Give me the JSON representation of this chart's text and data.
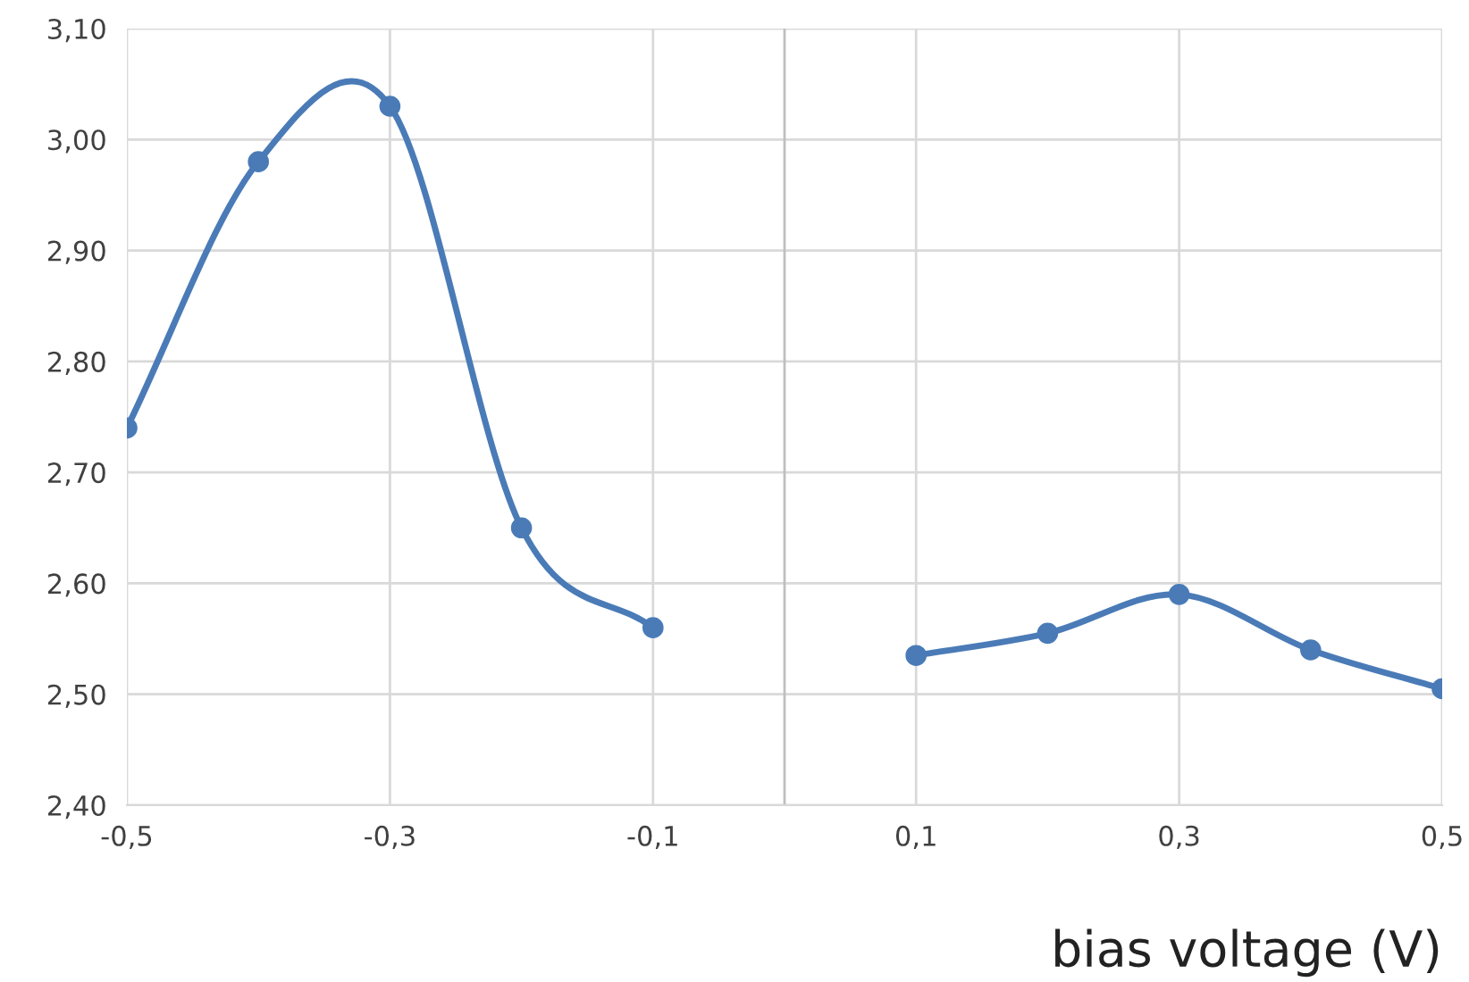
{
  "chart_data": {
    "type": "line",
    "xlabel": "bias voltage (V)",
    "series": [
      {
        "color": "#4a7bb7",
        "x": [
          -0.5,
          -0.4,
          -0.3,
          -0.2,
          -0.1
        ],
        "values": [
          2.74,
          2.98,
          3.03,
          2.65,
          2.56
        ]
      },
      {
        "color": "#4a7bb7",
        "x": [
          0.1,
          0.2,
          0.3,
          0.4,
          0.5
        ],
        "values": [
          2.535,
          2.555,
          2.59,
          2.54,
          2.505
        ]
      }
    ],
    "xlim": [
      -0.5,
      0.5
    ],
    "xticks": [
      {
        "value": -0.5,
        "label": "-0,5"
      },
      {
        "value": -0.3,
        "label": "-0,3"
      },
      {
        "value": -0.1,
        "label": "-0,1"
      },
      {
        "value": 0.1,
        "label": "0,1"
      },
      {
        "value": 0.3,
        "label": "0,3"
      },
      {
        "value": 0.5,
        "label": "0,5"
      }
    ],
    "ylim": [
      2.4,
      3.1
    ],
    "yticks": [
      {
        "value": 2.4,
        "label": "2,40"
      },
      {
        "value": 2.5,
        "label": "2,50"
      },
      {
        "value": 2.6,
        "label": "2,60"
      },
      {
        "value": 2.7,
        "label": "2,70"
      },
      {
        "value": 2.8,
        "label": "2,80"
      },
      {
        "value": 2.9,
        "label": "2,90"
      },
      {
        "value": 3.0,
        "label": "3,00"
      },
      {
        "value": 3.1,
        "label": "3,10"
      }
    ],
    "grid": true,
    "marker": "circle",
    "line_style": "solid",
    "legend": false
  }
}
